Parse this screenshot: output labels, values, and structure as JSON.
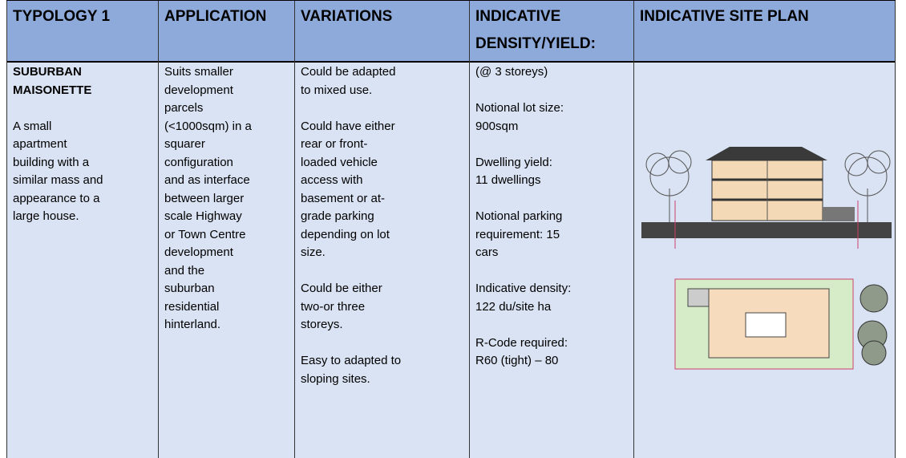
{
  "table": {
    "header": [
      "TYPOLOGY 1",
      "APPLICATION",
      "VARIATIONS",
      "INDICATIVE DENSITY/YIELD:",
      "INDICATIVE SITE PLAN"
    ],
    "rows": [
      [
        {
          "heading": [
            "SUBURBAN",
            "MAISONETTE"
          ],
          "paragraphs": [
            [
              "A small",
              "apartment",
              "building with a",
              "similar mass and",
              "appearance to a",
              "large house."
            ]
          ]
        },
        {
          "paragraphs": [
            [
              "Suits smaller",
              "development",
              "parcels",
              "(<1000sqm) in a",
              "squarer",
              "configuration",
              "and as interface",
              "between larger",
              "scale Highway",
              "or Town Centre",
              "development",
              "and the",
              "suburban",
              "residential",
              "hinterland."
            ]
          ]
        },
        {
          "paragraphs": [
            [
              "Could be adapted",
              "to mixed use."
            ],
            [
              "Could have either",
              "rear or front-",
              "loaded vehicle",
              "access with",
              "basement or at-",
              "grade parking",
              "depending on lot",
              "size."
            ],
            [
              "Could be either",
              "two-or three",
              "storeys."
            ],
            [
              "Easy to adapted to",
              "sloping sites."
            ]
          ]
        },
        {
          "paragraphs": [
            [
              "(@ 3 storeys)"
            ],
            [
              "Notional lot size:",
              "900sqm"
            ],
            [
              "Dwelling yield:",
              "11 dwellings"
            ],
            [
              "Notional parking",
              "requirement: 15",
              "cars"
            ],
            [
              "Indicative density:",
              "122 du/site ha"
            ],
            [
              "R-Code required:",
              "R60 (tight) – 80"
            ]
          ]
        }
      ]
    ]
  }
}
